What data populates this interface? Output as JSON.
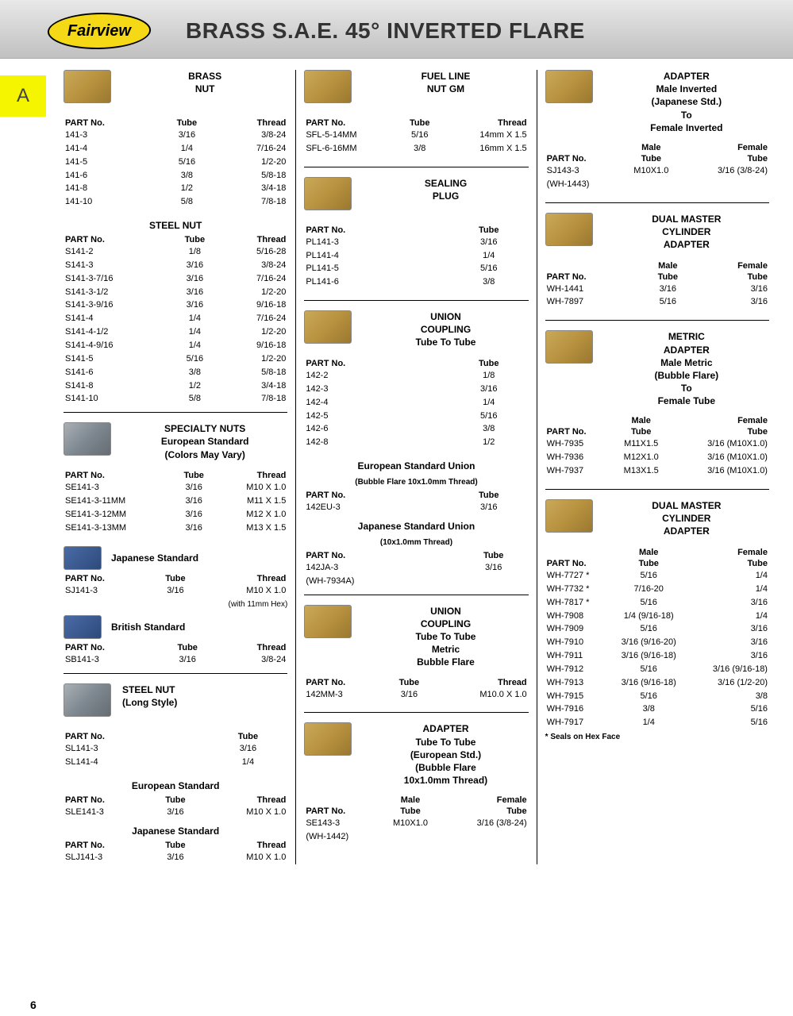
{
  "logo_text": "Fairview",
  "page_title": "BRASS S.A.E. 45° INVERTED FLARE",
  "section_letter": "A",
  "page_number": "6",
  "col1": {
    "brass_nut": {
      "title": "BRASS\nNUT",
      "headers": [
        "PART No.",
        "Tube",
        "Thread"
      ],
      "rows": [
        [
          "141-3",
          "3/16",
          "3/8-24"
        ],
        [
          "141-4",
          "1/4",
          "7/16-24"
        ],
        [
          "141-5",
          "5/16",
          "1/2-20"
        ],
        [
          "141-6",
          "3/8",
          "5/8-18"
        ],
        [
          "141-8",
          "1/2",
          "3/4-18"
        ],
        [
          "141-10",
          "5/8",
          "7/8-18"
        ]
      ]
    },
    "steel_nut": {
      "title": "STEEL NUT",
      "headers": [
        "PART No.",
        "Tube",
        "Thread"
      ],
      "rows": [
        [
          "S141-2",
          "1/8",
          "5/16-28"
        ],
        [
          "S141-3",
          "3/16",
          "3/8-24"
        ],
        [
          "S141-3-7/16",
          "3/16",
          "7/16-24"
        ],
        [
          "S141-3-1/2",
          "3/16",
          "1/2-20"
        ],
        [
          "S141-3-9/16",
          "3/16",
          "9/16-18"
        ],
        [
          "S141-4",
          "1/4",
          "7/16-24"
        ],
        [
          "S141-4-1/2",
          "1/4",
          "1/2-20"
        ],
        [
          "S141-4-9/16",
          "1/4",
          "9/16-18"
        ],
        [
          "S141-5",
          "5/16",
          "1/2-20"
        ],
        [
          "S141-6",
          "3/8",
          "5/8-18"
        ],
        [
          "S141-8",
          "1/2",
          "3/4-18"
        ],
        [
          "S141-10",
          "5/8",
          "7/8-18"
        ]
      ]
    },
    "specialty_nuts": {
      "title": "SPECIALTY NUTS\nEuropean Standard\n(Colors May Vary)",
      "headers": [
        "PART No.",
        "Tube",
        "Thread"
      ],
      "rows": [
        [
          "SE141-3",
          "3/16",
          "M10 X 1.0"
        ],
        [
          "SE141-3-11MM",
          "3/16",
          "M11 X 1.5"
        ],
        [
          "SE141-3-12MM",
          "3/16",
          "M12 X 1.0"
        ],
        [
          "SE141-3-13MM",
          "3/16",
          "M13 X 1.5"
        ]
      ]
    },
    "japanese_std": {
      "title": "Japanese Standard",
      "headers": [
        "PART No.",
        "Tube",
        "Thread"
      ],
      "rows": [
        [
          "SJ141-3",
          "3/16",
          "M10 X 1.0"
        ]
      ],
      "note": "(with 11mm Hex)"
    },
    "british_std": {
      "title": "British Standard",
      "headers": [
        "PART No.",
        "Tube",
        "Thread"
      ],
      "rows": [
        [
          "SB141-3",
          "3/16",
          "3/8-24"
        ]
      ]
    },
    "steel_nut_long": {
      "title": "STEEL NUT\n(Long Style)",
      "headers": [
        "PART No.",
        "Tube"
      ],
      "rows": [
        [
          "SL141-3",
          "3/16"
        ],
        [
          "SL141-4",
          "1/4"
        ]
      ]
    },
    "euro_std2": {
      "title": "European Standard",
      "headers": [
        "PART No.",
        "Tube",
        "Thread"
      ],
      "rows": [
        [
          "SLE141-3",
          "3/16",
          "M10 X 1.0"
        ]
      ]
    },
    "jap_std2": {
      "title": "Japanese Standard",
      "headers": [
        "PART No.",
        "Tube",
        "Thread"
      ],
      "rows": [
        [
          "SLJ141-3",
          "3/16",
          "M10 X 1.0"
        ]
      ]
    }
  },
  "col2": {
    "fuel_line_nut": {
      "title": "FUEL LINE\nNUT GM",
      "headers": [
        "PART No.",
        "Tube",
        "Thread"
      ],
      "rows": [
        [
          "SFL-5-14MM",
          "5/16",
          "14mm X 1.5"
        ],
        [
          "SFL-6-16MM",
          "3/8",
          "16mm X 1.5"
        ]
      ]
    },
    "sealing_plug": {
      "title": "SEALING\nPLUG",
      "headers": [
        "PART No.",
        "Tube"
      ],
      "rows": [
        [
          "PL141-3",
          "3/16"
        ],
        [
          "PL141-4",
          "1/4"
        ],
        [
          "PL141-5",
          "5/16"
        ],
        [
          "PL141-6",
          "3/8"
        ]
      ]
    },
    "union_coupling": {
      "title": "UNION\nCOUPLING\nTube To Tube",
      "headers": [
        "PART No.",
        "Tube"
      ],
      "rows": [
        [
          "142-2",
          "1/8"
        ],
        [
          "142-3",
          "3/16"
        ],
        [
          "142-4",
          "1/4"
        ],
        [
          "142-5",
          "5/16"
        ],
        [
          "142-6",
          "3/8"
        ],
        [
          "142-8",
          "1/2"
        ]
      ]
    },
    "euro_union": {
      "title": "European Standard Union",
      "subtitle": "(Bubble Flare 10x1.0mm Thread)",
      "headers": [
        "PART No.",
        "Tube"
      ],
      "rows": [
        [
          "142EU-3",
          "3/16"
        ]
      ]
    },
    "jap_union": {
      "title": "Japanese Standard Union",
      "subtitle": "(10x1.0mm Thread)",
      "headers": [
        "PART No.",
        "Tube"
      ],
      "rows": [
        [
          "142JA-3",
          "3/16"
        ],
        [
          "(WH-7934A)",
          ""
        ]
      ]
    },
    "union_metric": {
      "title": "UNION\nCOUPLING\nTube To Tube\nMetric\nBubble Flare",
      "headers": [
        "PART No.",
        "Tube",
        "Thread"
      ],
      "rows": [
        [
          "142MM-3",
          "3/16",
          "M10.0 X 1.0"
        ]
      ]
    },
    "adapter_euro": {
      "title": "ADAPTER\nTube To Tube\n(European Std.)\n(Bubble Flare\n10x1.0mm Thread)",
      "headers_top": [
        "",
        "Male",
        "Female"
      ],
      "headers": [
        "PART No.",
        "Tube",
        "Tube"
      ],
      "rows": [
        [
          "SE143-3",
          "M10X1.0",
          "3/16 (3/8-24)"
        ],
        [
          "(WH-1442)",
          "",
          ""
        ]
      ]
    }
  },
  "col3": {
    "adapter_jp": {
      "title": "ADAPTER\nMale Inverted\n(Japanese Std.)\nTo\nFemale Inverted",
      "headers_top": [
        "",
        "Male",
        "Female"
      ],
      "headers": [
        "PART No.",
        "Tube",
        "Tube"
      ],
      "rows": [
        [
          "SJ143-3",
          "M10X1.0",
          "3/16 (3/8-24)"
        ],
        [
          "(WH-1443)",
          "",
          ""
        ]
      ]
    },
    "dual_master1": {
      "title": "DUAL MASTER\nCYLINDER\nADAPTER",
      "headers_top": [
        "",
        "Male",
        "Female"
      ],
      "headers": [
        "PART No.",
        "Tube",
        "Tube"
      ],
      "rows": [
        [
          "WH-1441",
          "3/16",
          "3/16"
        ],
        [
          "WH-7897",
          "5/16",
          "3/16"
        ]
      ]
    },
    "metric_adapter": {
      "title": "METRIC\nADAPTER\nMale Metric\n(Bubble Flare)\nTo\nFemale Tube",
      "headers_top": [
        "",
        "Male",
        "Female"
      ],
      "headers": [
        "PART No.",
        "Tube",
        "Tube"
      ],
      "rows": [
        [
          "WH-7935",
          "M11X1.5",
          "3/16 (M10X1.0)"
        ],
        [
          "WH-7936",
          "M12X1.0",
          "3/16 (M10X1.0)"
        ],
        [
          "WH-7937",
          "M13X1.5",
          "3/16 (M10X1.0)"
        ]
      ]
    },
    "dual_master2": {
      "title": "DUAL MASTER\nCYLINDER\nADAPTER",
      "headers_top": [
        "",
        "Male",
        "Female"
      ],
      "headers": [
        "PART No.",
        "Tube",
        "Tube"
      ],
      "rows": [
        [
          "WH-7727 *",
          "5/16",
          "1/4"
        ],
        [
          "WH-7732 *",
          "7/16-20",
          "1/4"
        ],
        [
          "WH-7817 *",
          "5/16",
          "3/16"
        ],
        [
          "WH-7908",
          "1/4 (9/16-18)",
          "1/4"
        ],
        [
          "WH-7909",
          "5/16",
          "3/16"
        ],
        [
          "WH-7910",
          "3/16 (9/16-20)",
          "3/16"
        ],
        [
          "WH-7911",
          "3/16 (9/16-18)",
          "3/16"
        ],
        [
          "WH-7912",
          "5/16",
          "3/16 (9/16-18)"
        ],
        [
          "WH-7913",
          "3/16 (9/16-18)",
          "3/16 (1/2-20)"
        ],
        [
          "WH-7915",
          "5/16",
          "3/8"
        ],
        [
          "WH-7916",
          "3/8",
          "5/16"
        ],
        [
          "WH-7917",
          "1/4",
          "5/16"
        ]
      ],
      "note": "* Seals on Hex Face"
    }
  }
}
